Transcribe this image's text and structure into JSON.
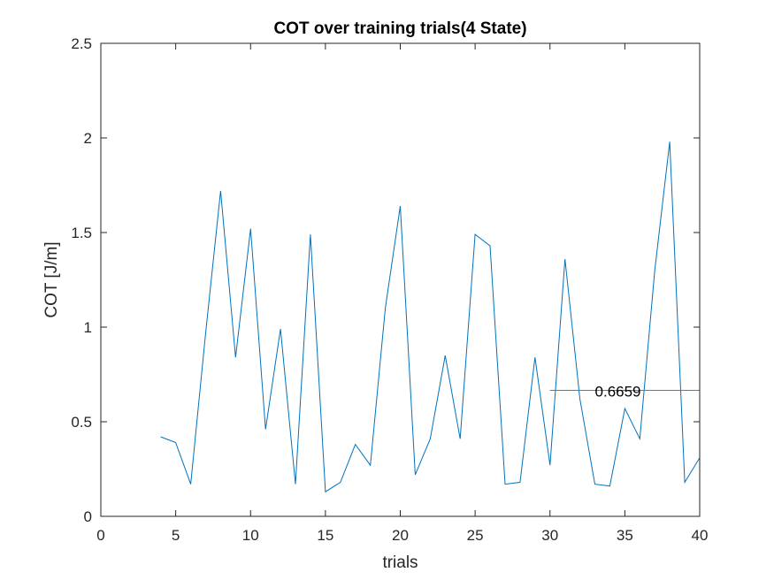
{
  "chart_data": {
    "type": "line",
    "title": "COT over training trials(4 State)",
    "xlabel": "trials",
    "ylabel": "COT [J/m]",
    "xlim": [
      0,
      40
    ],
    "ylim": [
      0,
      2.5
    ],
    "xticks": [
      0,
      5,
      10,
      15,
      20,
      25,
      30,
      35,
      40
    ],
    "yticks": [
      0,
      0.5,
      1,
      1.5,
      2,
      2.5
    ],
    "xtick_labels": [
      "0",
      "5",
      "10",
      "15",
      "20",
      "25",
      "30",
      "35",
      "40"
    ],
    "ytick_labels": [
      "0",
      "0.5",
      "1",
      "1.5",
      "2",
      "2.5"
    ],
    "grid": false,
    "series": [
      {
        "x": [
          4,
          5,
          6,
          7,
          8,
          9,
          10,
          11,
          12,
          13,
          14,
          15,
          16,
          17,
          18,
          19,
          20,
          21,
          22,
          23,
          24,
          25,
          26,
          27,
          28,
          29,
          30,
          31,
          32,
          33,
          34,
          35,
          36,
          37,
          38,
          39,
          40
        ],
        "values": [
          0.42,
          0.39,
          0.17,
          0.97,
          1.72,
          0.84,
          1.52,
          0.46,
          0.99,
          0.17,
          1.49,
          0.13,
          0.18,
          0.38,
          0.27,
          1.1,
          1.64,
          0.22,
          0.41,
          0.85,
          0.41,
          1.49,
          1.43,
          0.17,
          0.18,
          0.84,
          0.27,
          1.36,
          0.62,
          0.17,
          0.16,
          0.57,
          0.41,
          1.3,
          1.98,
          0.18,
          0.31
        ],
        "color": "#0072BD"
      },
      {
        "x": [
          30,
          40
        ],
        "values": [
          0.6659,
          0.6659
        ],
        "color": "#D95319"
      }
    ],
    "annotations": [
      {
        "text": "0.6659",
        "x": 33,
        "y": 0.6659
      }
    ]
  }
}
